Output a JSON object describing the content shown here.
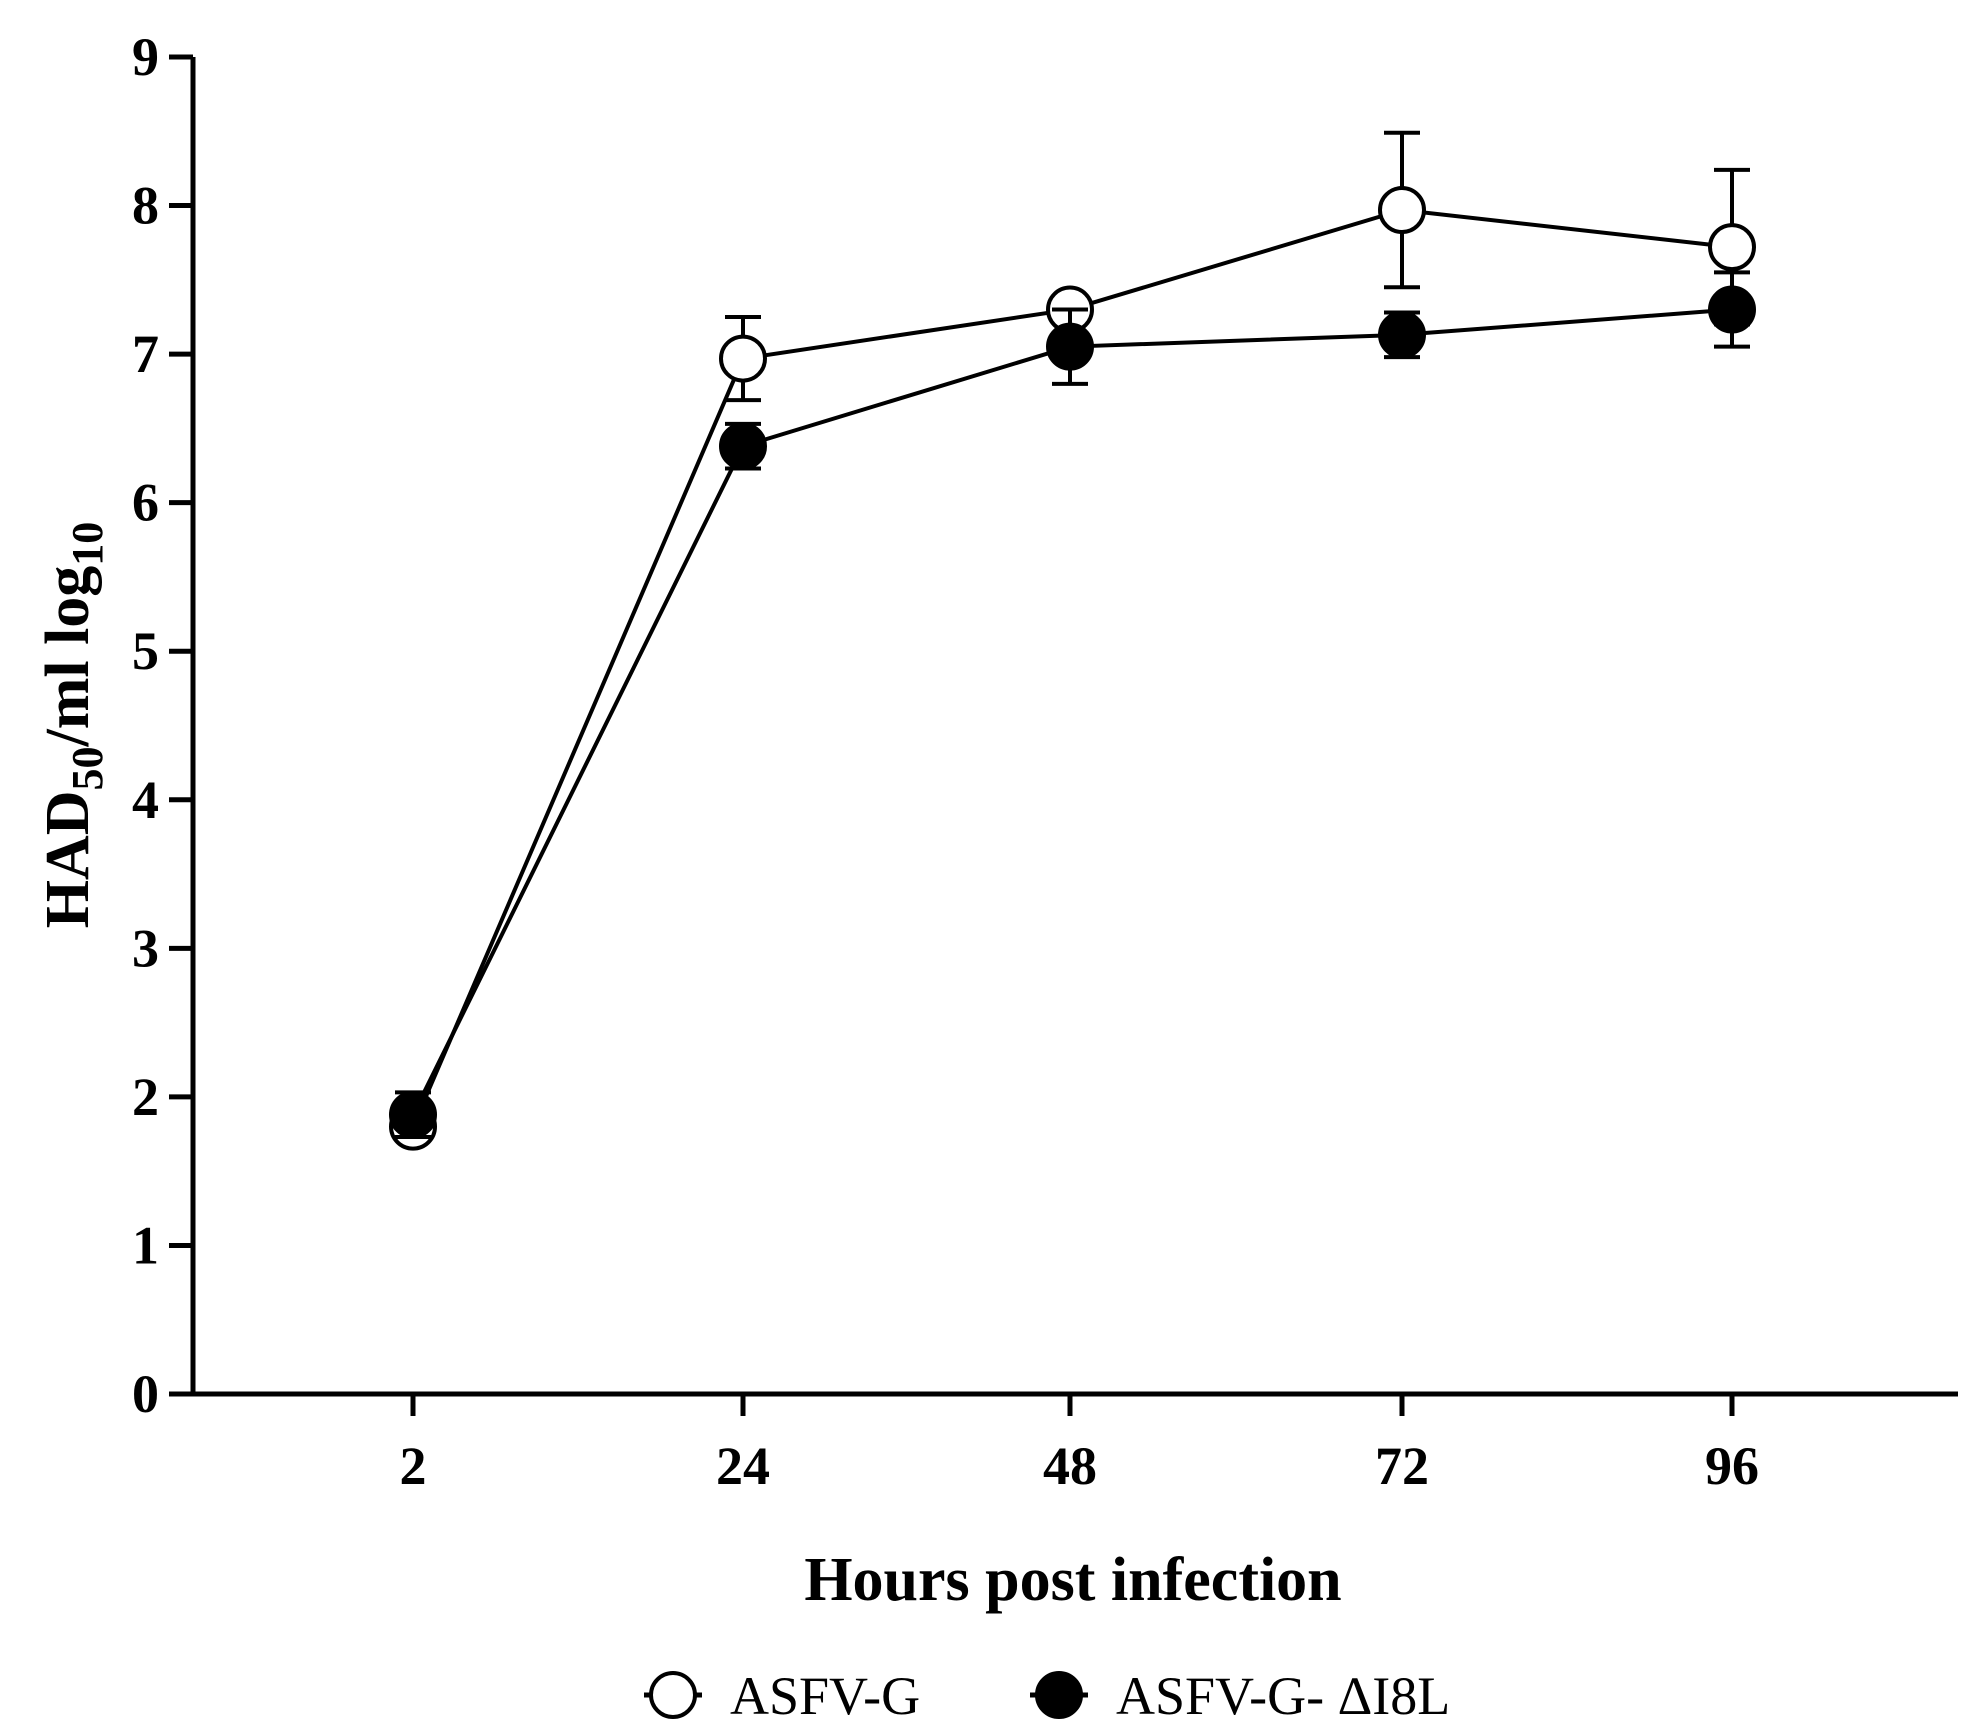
{
  "chart_data": {
    "type": "line",
    "x": [
      2,
      24,
      48,
      72,
      96
    ],
    "x_tick_labels": [
      "2",
      "24",
      "48",
      "72",
      "96"
    ],
    "y_tick_labels": [
      "0",
      "1",
      "2",
      "3",
      "4",
      "5",
      "6",
      "7",
      "8",
      "9"
    ],
    "ylim": [
      0,
      9
    ],
    "xlabel": "Hours post infection",
    "ylabel": {
      "part1": "HAD",
      "sub1": "50",
      "part2": "/ml log",
      "sub2": "10"
    },
    "legend_position": "bottom-center",
    "grid": false,
    "series": [
      {
        "name": "ASFV-G",
        "marker": "open-circle",
        "values": [
          1.8,
          6.97,
          7.3,
          7.97,
          7.72
        ],
        "error": [
          0.05,
          0.28,
          0.05,
          0.52,
          0.52
        ]
      },
      {
        "name": "ASFV-G- ΔI8L",
        "marker": "filled-circle",
        "values": [
          1.88,
          6.38,
          7.05,
          7.13,
          7.3
        ],
        "error": [
          0.15,
          0.15,
          0.25,
          0.15,
          0.25
        ]
      }
    ],
    "colors": {
      "line": "#000000",
      "background": "#ffffff"
    }
  }
}
